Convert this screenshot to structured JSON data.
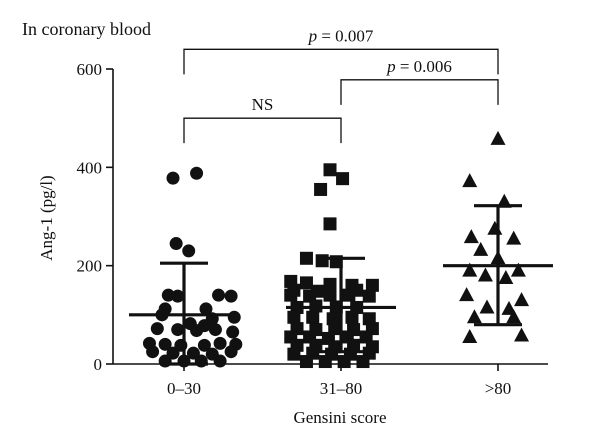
{
  "chart_data": {
    "type": "scatter",
    "title": "In coronary blood",
    "xlabel": "Gensini score",
    "ylabel": "Ang-1 (pg/l)",
    "ylim": [
      0,
      600
    ],
    "yticks": [
      0,
      200,
      400,
      600
    ],
    "categories": [
      "0–30",
      "31–80",
      ">80"
    ],
    "grid": false,
    "legend": "none",
    "color": "#111111",
    "series": [
      {
        "marker": "circle",
        "summary": {
          "center": 100,
          "lower": 0,
          "upper": 205
        },
        "points": [
          [
            0.93,
            378
          ],
          [
            1.08,
            388
          ],
          [
            0.95,
            245
          ],
          [
            1.03,
            230
          ],
          [
            0.9,
            140
          ],
          [
            0.96,
            138
          ],
          [
            1.22,
            140
          ],
          [
            1.3,
            138
          ],
          [
            0.88,
            112
          ],
          [
            1.14,
            112
          ],
          [
            0.86,
            100
          ],
          [
            1.18,
            92
          ],
          [
            1.32,
            95
          ],
          [
            1.04,
            82
          ],
          [
            1.13,
            78
          ],
          [
            0.83,
            72
          ],
          [
            0.96,
            70
          ],
          [
            1.08,
            68
          ],
          [
            1.2,
            70
          ],
          [
            1.31,
            65
          ],
          [
            0.78,
            42
          ],
          [
            0.88,
            40
          ],
          [
            0.98,
            38
          ],
          [
            1.13,
            38
          ],
          [
            1.23,
            42
          ],
          [
            1.33,
            40
          ],
          [
            0.8,
            25
          ],
          [
            0.93,
            22
          ],
          [
            1.06,
            22
          ],
          [
            1.18,
            20
          ],
          [
            1.3,
            25
          ],
          [
            0.88,
            6
          ],
          [
            1.0,
            6
          ],
          [
            1.11,
            6
          ],
          [
            1.23,
            6
          ]
        ]
      },
      {
        "marker": "square",
        "summary": {
          "center": 115,
          "lower": 25,
          "upper": 215
        },
        "points": [
          [
            1.93,
            395
          ],
          [
            2.01,
            377
          ],
          [
            1.87,
            355
          ],
          [
            1.93,
            285
          ],
          [
            1.78,
            215
          ],
          [
            1.88,
            210
          ],
          [
            1.97,
            208
          ],
          [
            1.68,
            168
          ],
          [
            1.78,
            165
          ],
          [
            1.93,
            162
          ],
          [
            2.07,
            160
          ],
          [
            2.2,
            160
          ],
          [
            1.7,
            150
          ],
          [
            1.85,
            148
          ],
          [
            2.1,
            150
          ],
          [
            1.68,
            140
          ],
          [
            1.8,
            138
          ],
          [
            1.93,
            140
          ],
          [
            2.05,
            140
          ],
          [
            2.18,
            138
          ],
          [
            1.72,
            115
          ],
          [
            1.84,
            118
          ],
          [
            1.97,
            116
          ],
          [
            2.1,
            115
          ],
          [
            1.7,
            95
          ],
          [
            1.82,
            95
          ],
          [
            1.95,
            92
          ],
          [
            2.07,
            95
          ],
          [
            2.18,
            92
          ],
          [
            1.72,
            72
          ],
          [
            1.84,
            70
          ],
          [
            1.96,
            72
          ],
          [
            2.08,
            70
          ],
          [
            2.2,
            72
          ],
          [
            1.68,
            55
          ],
          [
            1.8,
            55
          ],
          [
            1.92,
            52
          ],
          [
            2.04,
            55
          ],
          [
            2.16,
            55
          ],
          [
            1.72,
            38
          ],
          [
            1.84,
            38
          ],
          [
            1.96,
            35
          ],
          [
            2.08,
            38
          ],
          [
            2.2,
            35
          ],
          [
            1.7,
            20
          ],
          [
            1.82,
            22
          ],
          [
            1.94,
            20
          ],
          [
            2.06,
            20
          ],
          [
            2.18,
            22
          ],
          [
            1.78,
            5
          ],
          [
            1.9,
            5
          ],
          [
            2.02,
            5
          ],
          [
            2.14,
            5
          ]
        ]
      },
      {
        "marker": "triangle",
        "summary": {
          "center": 200,
          "lower": 80,
          "upper": 322
        },
        "points": [
          [
            3.0,
            458
          ],
          [
            2.82,
            372
          ],
          [
            3.04,
            330
          ],
          [
            2.98,
            275
          ],
          [
            2.83,
            258
          ],
          [
            3.1,
            255
          ],
          [
            2.89,
            232
          ],
          [
            3.0,
            215
          ],
          [
            2.82,
            190
          ],
          [
            3.13,
            190
          ],
          [
            2.92,
            180
          ],
          [
            3.05,
            175
          ],
          [
            2.8,
            140
          ],
          [
            3.15,
            130
          ],
          [
            2.93,
            115
          ],
          [
            3.07,
            112
          ],
          [
            2.85,
            95
          ],
          [
            3.1,
            95
          ],
          [
            2.82,
            55
          ],
          [
            3.15,
            58
          ]
        ]
      }
    ],
    "annotations": [
      {
        "text": "NS",
        "from": 1,
        "to": 2,
        "y": 500
      },
      {
        "text": "= 0.006",
        "p_label": "p",
        "from": 2,
        "to": 3,
        "y": 578
      },
      {
        "text": "= 0.007",
        "p_label": "p",
        "from": 1,
        "to": 3,
        "y": 640
      }
    ]
  }
}
